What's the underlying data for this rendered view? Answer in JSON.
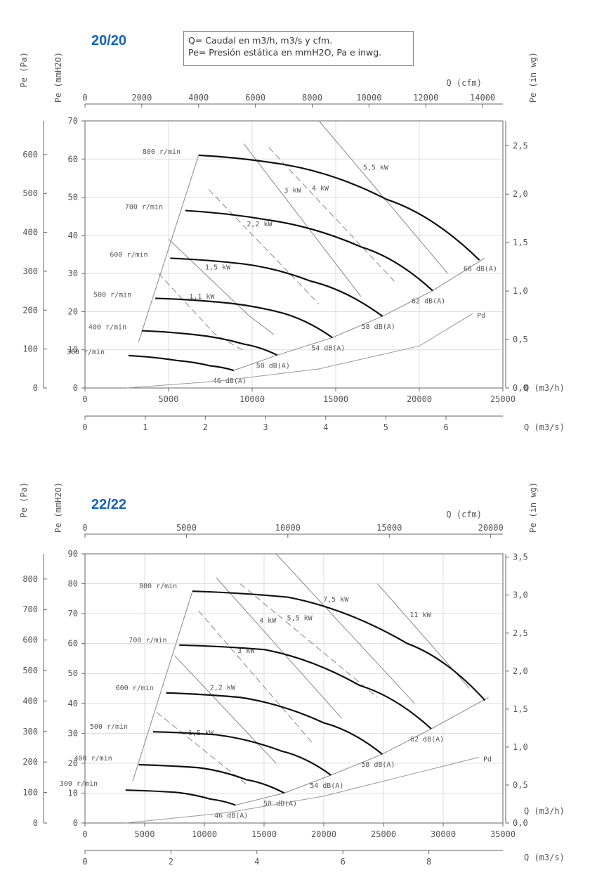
{
  "legend": {
    "line1": "Q= Caudal en m3/h, m3/s y cfm.",
    "line2": "Pe= Presión estática en mmH2O, Pa e inwg."
  },
  "chart_data": [
    {
      "type": "line",
      "title": "20/20",
      "left_axes": [
        {
          "label": "Pe (Pa)",
          "ticks": [
            0,
            100,
            200,
            300,
            400,
            500,
            600
          ]
        },
        {
          "label": "Pe (mmH2O)",
          "ticks": [
            0,
            10,
            20,
            30,
            40,
            50,
            60,
            70
          ]
        }
      ],
      "right_axis": {
        "label": "Pe (in wg)",
        "ticks": [
          "0,0",
          "0,5",
          "1,0",
          "1,5",
          "2,0",
          "2,5"
        ]
      },
      "top_axis": {
        "label": "Q (cfm)",
        "ticks": [
          0,
          2000,
          4000,
          6000,
          8000,
          10000,
          12000,
          14000
        ]
      },
      "x_axis": {
        "label": "Q (m3/h)",
        "ticks": [
          0,
          5000,
          10000,
          15000,
          20000,
          25000
        ]
      },
      "x2_axis": {
        "label": "Q (m3/s)",
        "ticks": [
          0,
          1,
          2,
          3,
          4,
          5,
          6
        ]
      },
      "xlim": [
        0,
        25000
      ],
      "ylim": [
        0,
        70
      ],
      "speed_curves": [
        {
          "label": "300 r/min",
          "points": [
            [
              2600,
              8.5
            ],
            [
              5500,
              7.2
            ],
            [
              7500,
              5.8
            ],
            [
              8900,
              4.6
            ]
          ]
        },
        {
          "label": "400 r/min",
          "points": [
            [
              3400,
              15
            ],
            [
              6500,
              14
            ],
            [
              9500,
              11.5
            ],
            [
              11500,
              8.6
            ]
          ]
        },
        {
          "label": "500 r/min",
          "points": [
            [
              4200,
              23.5
            ],
            [
              8000,
              22.5
            ],
            [
              11500,
              20
            ],
            [
              14800,
              13.2
            ]
          ]
        },
        {
          "label": "600 r/min",
          "points": [
            [
              5100,
              34
            ],
            [
              9500,
              32.5
            ],
            [
              13500,
              28
            ],
            [
              17800,
              18.8
            ]
          ]
        },
        {
          "label": "700 r/min",
          "points": [
            [
              6000,
              46.5
            ],
            [
              11000,
              44
            ],
            [
              16500,
              37
            ],
            [
              20800,
              25.5
            ]
          ]
        },
        {
          "label": "800 r/min",
          "points": [
            [
              6800,
              61
            ],
            [
              12000,
              58.5
            ],
            [
              18000,
              49.5
            ],
            [
              23600,
              33.5
            ]
          ]
        }
      ],
      "power_lines": [
        {
          "label": "1,1 kW",
          "dash": true,
          "points": [
            [
              4400,
              30
            ],
            [
              7800,
              14
            ],
            [
              9600,
              9.5
            ]
          ]
        },
        {
          "label": "1,5 kW",
          "dash": false,
          "points": [
            [
              5000,
              39
            ],
            [
              9800,
              19
            ],
            [
              11300,
              14
            ]
          ]
        },
        {
          "label": "2,2 kW",
          "dash": true,
          "points": [
            [
              7400,
              52
            ],
            [
              14000,
              22
            ]
          ]
        },
        {
          "label": "3 kW",
          "dash": false,
          "points": [
            [
              9500,
              64
            ],
            [
              16500,
              24
            ]
          ]
        },
        {
          "label": "4 kW",
          "dash": true,
          "points": [
            [
              11000,
              63
            ],
            [
              18500,
              28
            ]
          ]
        },
        {
          "label": "5,5 kW",
          "dash": false,
          "points": [
            [
              14000,
              70
            ],
            [
              21700,
              30
            ]
          ]
        }
      ],
      "noise_lines": [
        {
          "label": "46 dB(A)",
          "value": "46"
        },
        {
          "label": "50 dB(A)",
          "value": "50"
        },
        {
          "label": "54 dB(A)",
          "value": "54"
        },
        {
          "label": "58 dB(A)",
          "value": "58"
        },
        {
          "label": "62 dB(A)",
          "value": "62"
        },
        {
          "label": "66 dB(A)",
          "value": "66"
        }
      ],
      "envelope_left": [
        [
          3200,
          12
        ],
        [
          6800,
          61
        ]
      ],
      "envelope_right": [
        [
          8900,
          4.6
        ],
        [
          11500,
          8.6
        ],
        [
          14800,
          13.2
        ],
        [
          17800,
          18.8
        ],
        [
          20800,
          25.5
        ],
        [
          23900,
          34
        ]
      ],
      "pd_curve": {
        "label": "Pd",
        "points": [
          [
            2500,
            0
          ],
          [
            8000,
            1.8
          ],
          [
            14000,
            5
          ],
          [
            20000,
            11
          ],
          [
            23200,
            19.5
          ]
        ]
      },
      "grid": true
    },
    {
      "type": "line",
      "title": "22/22",
      "left_axes": [
        {
          "label": "Pe (Pa)",
          "ticks": [
            0,
            100,
            200,
            300,
            400,
            500,
            600,
            700,
            800
          ]
        },
        {
          "label": "Pe (mmH2O)",
          "ticks": [
            0,
            10,
            20,
            30,
            40,
            50,
            60,
            70,
            80,
            90
          ]
        }
      ],
      "right_axis": {
        "label": "Pe (in wg)",
        "ticks": [
          "0,0",
          "0,5",
          "1,0",
          "1,5",
          "2,0",
          "2,5",
          "3,0",
          "3,5"
        ]
      },
      "top_axis": {
        "label": "Q (cfm)",
        "ticks": [
          0,
          5000,
          10000,
          15000,
          20000
        ]
      },
      "x_axis": {
        "label": "Q (m3/h)",
        "ticks": [
          0,
          5000,
          10000,
          15000,
          20000,
          25000,
          30000,
          35000
        ]
      },
      "x2_axis": {
        "label": "Q (m3/s)",
        "ticks": [
          0,
          2,
          4,
          6,
          8
        ]
      },
      "xlim": [
        0,
        35000
      ],
      "ylim": [
        0,
        90
      ],
      "speed_curves": [
        {
          "label": "300 r/min",
          "points": [
            [
              3400,
              11
            ],
            [
              7500,
              10.3
            ],
            [
              10500,
              8
            ],
            [
              12600,
              6
            ]
          ]
        },
        {
          "label": "400 r/min",
          "points": [
            [
              4500,
              19.5
            ],
            [
              9500,
              18.5
            ],
            [
              13500,
              14.5
            ],
            [
              16700,
              10
            ]
          ]
        },
        {
          "label": "500 r/min",
          "points": [
            [
              5700,
              30.5
            ],
            [
              11000,
              29.5
            ],
            [
              16500,
              24
            ],
            [
              20600,
              16
            ]
          ]
        },
        {
          "label": "600 r/min",
          "points": [
            [
              6800,
              43.5
            ],
            [
              13000,
              42
            ],
            [
              20000,
              33.5
            ],
            [
              24900,
              23
            ]
          ]
        },
        {
          "label": "700 r/min",
          "points": [
            [
              7900,
              59.5
            ],
            [
              15000,
              58
            ],
            [
              23000,
              46
            ],
            [
              29000,
              31.5
            ]
          ]
        },
        {
          "label": "800 r/min",
          "points": [
            [
              9000,
              77.5
            ],
            [
              17000,
              75.5
            ],
            [
              27000,
              60
            ],
            [
              33500,
              41
            ]
          ]
        }
      ],
      "power_lines": [
        {
          "label": "1,5 kW",
          "dash": true,
          "points": [
            [
              6000,
              37
            ],
            [
              13500,
              13
            ]
          ]
        },
        {
          "label": "2,2 kW",
          "dash": false,
          "points": [
            [
              7500,
              56
            ],
            [
              16000,
              20
            ]
          ]
        },
        {
          "label": "3 kW",
          "dash": true,
          "points": [
            [
              9500,
              71
            ],
            [
              19000,
              27
            ]
          ]
        },
        {
          "label": "4 kW",
          "dash": false,
          "points": [
            [
              11000,
              82
            ],
            [
              21500,
              35
            ]
          ]
        },
        {
          "label": "5,5 kW",
          "dash": true,
          "points": [
            [
              13000,
              80
            ],
            [
              24500,
              42
            ]
          ]
        },
        {
          "label": "7,5 kW",
          "dash": false,
          "points": [
            [
              16000,
              90
            ],
            [
              27600,
              40
            ]
          ]
        },
        {
          "label": "11 kW",
          "dash": false,
          "points": [
            [
              24500,
              80
            ],
            [
              32200,
              45
            ]
          ]
        }
      ],
      "noise_lines": [
        {
          "label": "46 dB(A)",
          "value": "46"
        },
        {
          "label": "50 dB(A)",
          "value": "50"
        },
        {
          "label": "54 dB(A)",
          "value": "54"
        },
        {
          "label": "58 dB(A)",
          "value": "58"
        },
        {
          "label": "62 dB(A)",
          "value": "62"
        }
      ],
      "envelope_left": [
        [
          4000,
          14
        ],
        [
          9000,
          77.5
        ]
      ],
      "envelope_right": [
        [
          12600,
          6
        ],
        [
          16700,
          10
        ],
        [
          20600,
          16
        ],
        [
          24900,
          23
        ],
        [
          29000,
          31.5
        ],
        [
          33800,
          42
        ]
      ],
      "pd_curve": {
        "label": "Pd",
        "points": [
          [
            3400,
            0
          ],
          [
            12000,
            3.5
          ],
          [
            20000,
            9
          ],
          [
            28000,
            17
          ],
          [
            33000,
            22
          ]
        ]
      },
      "grid": true
    }
  ]
}
